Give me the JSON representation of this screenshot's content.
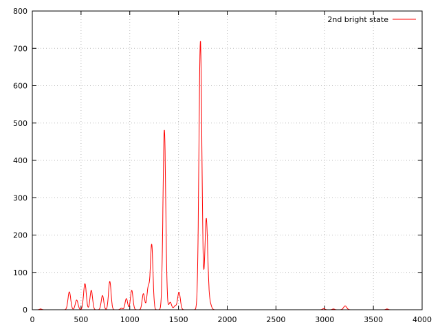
{
  "chart_data": {
    "type": "line",
    "title": "",
    "xlabel": "",
    "ylabel": "",
    "xlim": [
      0,
      4000
    ],
    "ylim": [
      0,
      800
    ],
    "x_ticks": [
      0,
      500,
      1000,
      1500,
      2000,
      2500,
      3000,
      3500,
      4000
    ],
    "y_ticks": [
      0,
      100,
      200,
      300,
      400,
      500,
      600,
      700,
      800
    ],
    "x_tick_labels": [
      "0",
      "500",
      "1000",
      "1500",
      "2000",
      "2500",
      "3000",
      "3500",
      "4000"
    ],
    "y_tick_labels": [
      "0",
      "100",
      "200",
      "300",
      "400",
      "500",
      "600",
      "700",
      "800"
    ],
    "grid": true,
    "legend_position": "top-right",
    "series": [
      {
        "name": "2nd bright state",
        "color": "#ff0000",
        "peaks": [
          {
            "x": 85,
            "height": 2,
            "width": 12
          },
          {
            "x": 380,
            "height": 48,
            "width": 14
          },
          {
            "x": 455,
            "height": 26,
            "width": 14
          },
          {
            "x": 540,
            "height": 70,
            "width": 14
          },
          {
            "x": 605,
            "height": 52,
            "width": 13
          },
          {
            "x": 720,
            "height": 38,
            "width": 13
          },
          {
            "x": 795,
            "height": 76,
            "width": 13
          },
          {
            "x": 915,
            "height": 4,
            "width": 12
          },
          {
            "x": 965,
            "height": 30,
            "width": 13
          },
          {
            "x": 1020,
            "height": 52,
            "width": 13
          },
          {
            "x": 1140,
            "height": 43,
            "width": 13
          },
          {
            "x": 1190,
            "height": 60,
            "width": 14
          },
          {
            "x": 1225,
            "height": 173,
            "width": 13
          },
          {
            "x": 1355,
            "height": 482,
            "width": 14
          },
          {
            "x": 1415,
            "height": 20,
            "width": 14
          },
          {
            "x": 1465,
            "height": 10,
            "width": 14
          },
          {
            "x": 1505,
            "height": 47,
            "width": 14
          },
          {
            "x": 1725,
            "height": 720,
            "width": 15
          },
          {
            "x": 1785,
            "height": 243,
            "width": 15
          },
          {
            "x": 1820,
            "height": 18,
            "width": 16
          },
          {
            "x": 2990,
            "height": 3,
            "width": 12
          },
          {
            "x": 3090,
            "height": 2,
            "width": 12
          },
          {
            "x": 3210,
            "height": 10,
            "width": 16
          },
          {
            "x": 3640,
            "height": 2,
            "width": 12
          }
        ]
      }
    ]
  }
}
